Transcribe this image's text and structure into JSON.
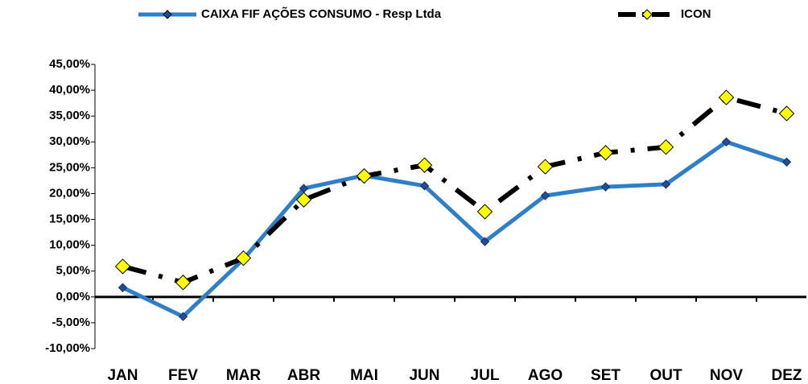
{
  "chart_data": {
    "type": "line",
    "categories": [
      "JAN",
      "FEV",
      "MAR",
      "ABR",
      "MAI",
      "JUN",
      "JUL",
      "AGO",
      "SET",
      "OUT",
      "NOV",
      "DEZ"
    ],
    "series": [
      {
        "name": "CAIXA FIF AÇÕES CONSUMO - Resp Ltda",
        "color": "#2e7fc8",
        "marker_color": "#1f4e9b",
        "values": [
          1.8,
          -3.8,
          7.3,
          21.0,
          23.5,
          21.5,
          10.7,
          19.6,
          21.3,
          21.8,
          30.0,
          26.1
        ]
      },
      {
        "name": "ICON",
        "color": "#000000",
        "marker_color": "#ffff00",
        "dashed": true,
        "values": [
          5.9,
          2.8,
          7.5,
          18.8,
          23.4,
          25.5,
          16.5,
          25.2,
          27.9,
          29.0,
          38.6,
          35.5
        ]
      }
    ],
    "ylim": [
      -10,
      45
    ],
    "yticks": [
      {
        "value": 45,
        "label": "45,00%"
      },
      {
        "value": 40,
        "label": "40,00%"
      },
      {
        "value": 35,
        "label": "35,00%"
      },
      {
        "value": 30,
        "label": "30,00%"
      },
      {
        "value": 25,
        "label": "25,00%"
      },
      {
        "value": 20,
        "label": "20,00%"
      },
      {
        "value": 15,
        "label": "15,00%"
      },
      {
        "value": 10,
        "label": "10,00%"
      },
      {
        "value": 5,
        "label": "5,00%"
      },
      {
        "value": 0,
        "label": "0,00%"
      },
      {
        "value": -5,
        "label": "-5,00%"
      },
      {
        "value": -10,
        "label": "-10,00%"
      }
    ],
    "grid": false,
    "legend": "top"
  }
}
